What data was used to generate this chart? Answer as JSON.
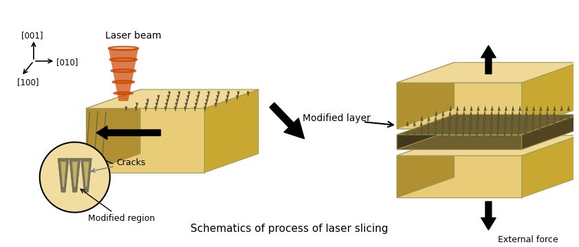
{
  "title": "Schematics of process of laser slicing",
  "title_fontsize": 11,
  "background_color": "#ffffff",
  "diamond_color_top": "#f0d898",
  "diamond_color_side": "#c8a830",
  "diamond_color_front": "#e8cc78",
  "diamond_color_left": "#b09030",
  "laser_color": "#cc4400",
  "modified_layer_color": "#706030",
  "labels": {
    "laser_beam": "Laser beam",
    "cracks": "Cracks",
    "modified_region": "Modified region",
    "modified_layer": "Modified layer",
    "external_force": "External force",
    "axis_001": "[001]",
    "axis_010": "[010]",
    "axis_100": "[100]"
  }
}
